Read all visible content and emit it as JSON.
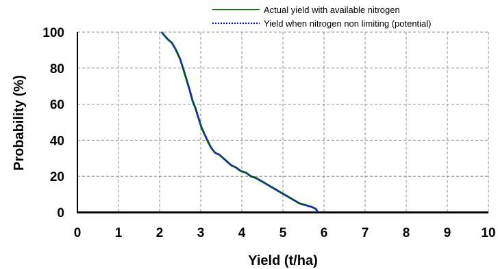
{
  "chart_data": {
    "type": "line",
    "xlabel": "Yield (t/ha)",
    "ylabel": "Probability (%)",
    "xlim": [
      0,
      10
    ],
    "ylim": [
      0,
      100
    ],
    "xticks": [
      "0",
      "1",
      "2",
      "3",
      "4",
      "5",
      "6",
      "7",
      "8",
      "9",
      "10"
    ],
    "yticks": [
      "0",
      "20",
      "40",
      "60",
      "80",
      "100"
    ],
    "grid": true,
    "legend_position": "top-right",
    "series": [
      {
        "name": "Actual yield with available nitrogen",
        "color": "#1a6e1a",
        "style": "solid",
        "x": [
          2.05,
          2.12,
          2.2,
          2.3,
          2.4,
          2.5,
          2.57,
          2.65,
          2.73,
          2.8,
          2.87,
          2.95,
          3.02,
          3.1,
          3.18,
          3.25,
          3.35,
          3.45,
          3.55,
          3.65,
          3.75,
          3.85,
          3.97,
          4.1,
          4.22,
          4.35,
          4.5,
          4.65,
          4.8,
          4.95,
          5.1,
          5.25,
          5.4,
          5.55,
          5.7,
          5.8,
          5.85
        ],
        "y": [
          100,
          98,
          96,
          94,
          90,
          85,
          80,
          74,
          68,
          62,
          58,
          52,
          47,
          43,
          39,
          36,
          33,
          32,
          30,
          28,
          26,
          25,
          23,
          22,
          20,
          19,
          17,
          15,
          13,
          11,
          9,
          7,
          5,
          4,
          3,
          2,
          0
        ]
      },
      {
        "name": "Yield when nitrogen non limiting (potential)",
        "color": "#0000ff",
        "style": "dotted",
        "x": [
          2.05,
          2.12,
          2.2,
          2.3,
          2.4,
          2.5,
          2.57,
          2.65,
          2.73,
          2.8,
          2.87,
          2.95,
          3.02,
          3.1,
          3.18,
          3.25,
          3.35,
          3.45,
          3.55,
          3.65,
          3.75,
          3.85,
          3.97,
          4.1,
          4.22,
          4.35,
          4.5,
          4.65,
          4.8,
          4.95,
          5.1,
          5.25,
          5.4,
          5.55,
          5.7,
          5.8,
          5.85
        ],
        "y": [
          100,
          98,
          96,
          94,
          90,
          85,
          80,
          74,
          68,
          62,
          58,
          52,
          47,
          43,
          39,
          36,
          33,
          32,
          30,
          28,
          26,
          25,
          23,
          22,
          20,
          19,
          17,
          15,
          13,
          11,
          9,
          7,
          5,
          4,
          3,
          2,
          0
        ]
      }
    ]
  }
}
